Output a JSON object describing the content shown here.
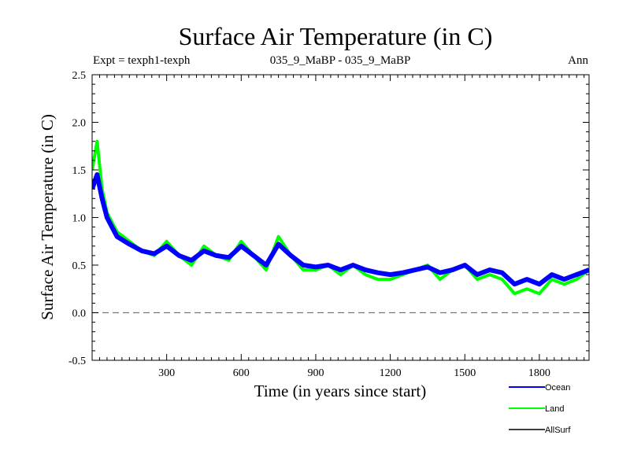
{
  "chart_data": {
    "type": "line",
    "title": "Surface Air Temperature (in C)",
    "subtitle_left": "Expt = texph1-texph",
    "subtitle_center": "035_9_MaBP - 035_9_MaBP",
    "subtitle_right": "Ann",
    "xlabel": "Time (in years since start)",
    "ylabel": "Surface Air Temperature (in C)",
    "xlim": [
      0,
      2000
    ],
    "ylim": [
      -0.5,
      2.5
    ],
    "x_ticks": [
      300,
      600,
      900,
      1200,
      1500,
      1800
    ],
    "y_ticks": [
      -0.5,
      0.0,
      0.5,
      1.0,
      1.5,
      2.0,
      2.5
    ],
    "y_tick_labels": [
      "-0.5",
      "0.0",
      "0.5",
      "1.0",
      "1.5",
      "2.0",
      "2.5"
    ],
    "zero_line": true,
    "legend_position": "bottom-right",
    "series": [
      {
        "name": "Ocean",
        "color": "#0000ff",
        "x": [
          0,
          20,
          40,
          60,
          80,
          100,
          150,
          200,
          250,
          300,
          350,
          400,
          450,
          500,
          550,
          600,
          650,
          700,
          750,
          800,
          850,
          900,
          950,
          1000,
          1050,
          1100,
          1150,
          1200,
          1250,
          1300,
          1350,
          1400,
          1450,
          1500,
          1550,
          1600,
          1650,
          1700,
          1750,
          1800,
          1850,
          1900,
          1950,
          2000
        ],
        "values": [
          1.3,
          1.45,
          1.2,
          1.0,
          0.9,
          0.8,
          0.72,
          0.65,
          0.62,
          0.7,
          0.6,
          0.55,
          0.65,
          0.6,
          0.58,
          0.7,
          0.6,
          0.5,
          0.72,
          0.6,
          0.5,
          0.48,
          0.5,
          0.45,
          0.5,
          0.45,
          0.42,
          0.4,
          0.42,
          0.45,
          0.48,
          0.42,
          0.45,
          0.5,
          0.4,
          0.45,
          0.42,
          0.3,
          0.35,
          0.3,
          0.4,
          0.35,
          0.4,
          0.45
        ]
      },
      {
        "name": "Land",
        "color": "#00ff00",
        "x": [
          0,
          20,
          40,
          60,
          80,
          100,
          150,
          200,
          250,
          300,
          350,
          400,
          450,
          500,
          550,
          600,
          650,
          700,
          750,
          800,
          850,
          900,
          950,
          1000,
          1050,
          1100,
          1150,
          1200,
          1250,
          1300,
          1350,
          1400,
          1450,
          1500,
          1550,
          1600,
          1650,
          1700,
          1750,
          1800,
          1850,
          1900,
          1950,
          2000
        ],
        "values": [
          1.5,
          1.8,
          1.3,
          1.05,
          0.95,
          0.85,
          0.75,
          0.65,
          0.6,
          0.75,
          0.6,
          0.5,
          0.7,
          0.6,
          0.55,
          0.75,
          0.6,
          0.45,
          0.8,
          0.6,
          0.45,
          0.45,
          0.5,
          0.4,
          0.5,
          0.4,
          0.35,
          0.35,
          0.4,
          0.45,
          0.5,
          0.35,
          0.45,
          0.5,
          0.35,
          0.4,
          0.35,
          0.2,
          0.25,
          0.2,
          0.35,
          0.3,
          0.35,
          0.45
        ]
      },
      {
        "name": "AllSurf",
        "color": "#000000",
        "x": [],
        "values": []
      }
    ]
  }
}
